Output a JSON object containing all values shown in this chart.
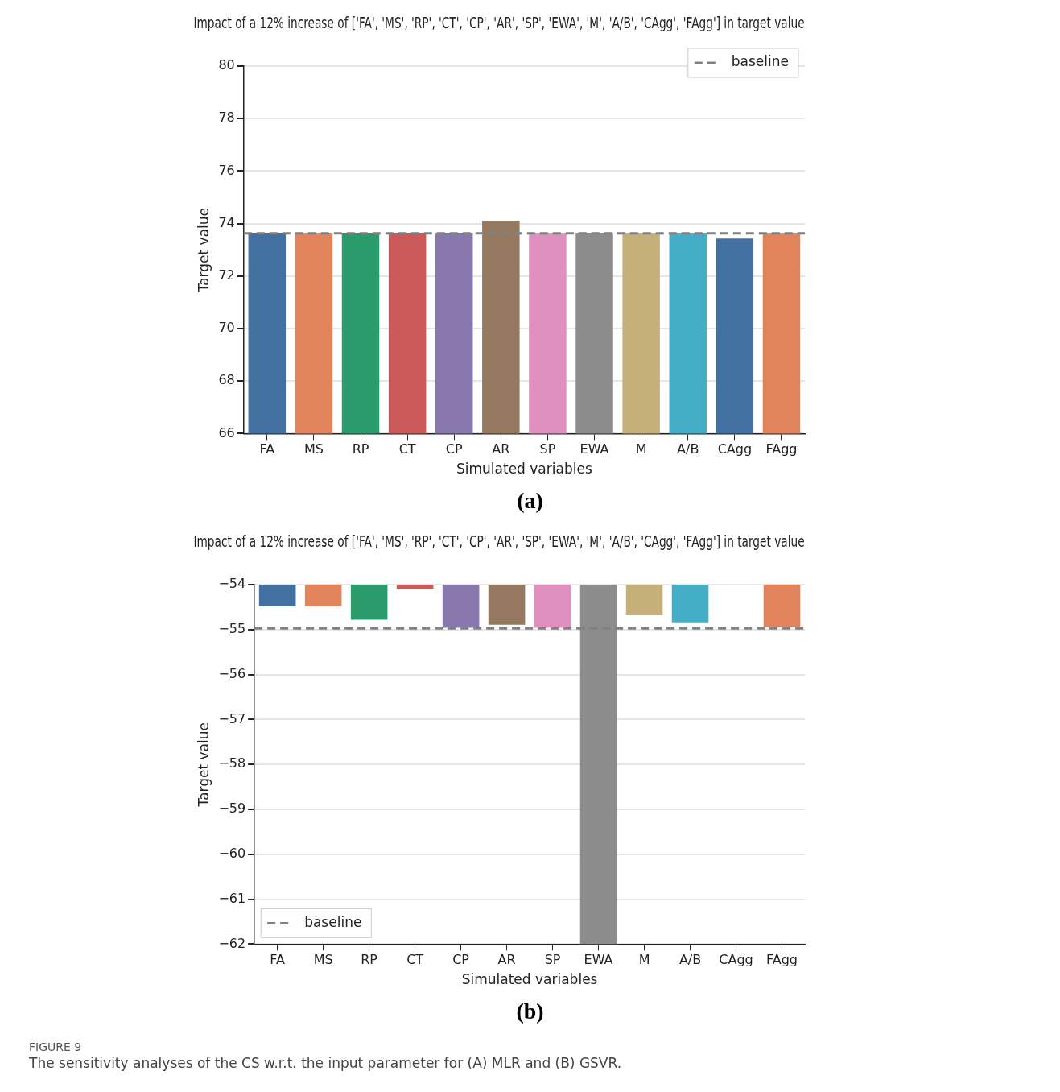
{
  "chart_data": [
    {
      "type": "bar",
      "title": "Impact of a 12% increase of ['FA', 'MS', 'RP', 'CT', 'CP', 'AR', 'SP', 'EWA', 'M', 'A/B', 'CAgg', 'FAgg'] in target value",
      "xlabel": "Simulated variables",
      "ylabel": "Target value",
      "categories": [
        "FA",
        "MS",
        "RP",
        "CT",
        "CP",
        "AR",
        "SP",
        "EWA",
        "M",
        "A/B",
        "CAgg",
        "FAgg"
      ],
      "values": [
        73.65,
        73.65,
        73.65,
        73.65,
        73.65,
        74.1,
        73.65,
        73.65,
        73.65,
        73.65,
        73.43,
        73.65
      ],
      "colors": [
        "#4270a1",
        "#e1845c",
        "#2a9b6b",
        "#cd5a5b",
        "#8978ad",
        "#947860",
        "#df90bf",
        "#8c8c8c",
        "#c5b07a",
        "#43aec5",
        "#4270a1",
        "#e1845c"
      ],
      "ylim": [
        66,
        80
      ],
      "yticks": [
        66,
        68,
        70,
        72,
        74,
        76,
        78,
        80
      ],
      "grid": "y",
      "legend": "top right",
      "ref_lines": [
        {
          "axis": "y",
          "value": 73.63,
          "label": "baseline",
          "color": "#808080",
          "line_style": "dashed"
        }
      ],
      "annotations": [
        "(a)"
      ]
    },
    {
      "type": "bar",
      "title": "Impact of a 12% increase of ['FA', 'MS', 'RP', 'CT', 'CP', 'AR', 'SP', 'EWA', 'M', 'A/B', 'CAgg', 'FAgg'] in target value",
      "xlabel": "Simulated variables",
      "ylabel": "Target value",
      "categories": [
        "FA",
        "MS",
        "RP",
        "CT",
        "CP",
        "AR",
        "SP",
        "EWA",
        "M",
        "A/B",
        "CAgg",
        "FAgg"
      ],
      "values": [
        -54.48,
        -54.48,
        -54.78,
        -54.09,
        -54.96,
        -54.89,
        -54.96,
        -62,
        -54.68,
        -54.84,
        null,
        -54.94
      ],
      "colors": [
        "#4270a1",
        "#e1845c",
        "#2a9b6b",
        "#cd5a5b",
        "#8978ad",
        "#947860",
        "#df90bf",
        "#8c8c8c",
        "#c5b07a",
        "#43aec5",
        "#4270a1",
        "#e1845c"
      ],
      "ylim": [
        -62,
        -54
      ],
      "yticks": [
        {
          "value": -62,
          "label": "−62"
        },
        {
          "value": -61,
          "label": "−61"
        },
        {
          "value": -60,
          "label": "−60"
        },
        {
          "value": -59,
          "label": "−59"
        },
        {
          "value": -58,
          "label": "−58"
        },
        {
          "value": -57,
          "label": "−57"
        },
        {
          "value": -56,
          "label": "−56"
        },
        {
          "value": -55,
          "label": "−55"
        },
        {
          "value": -54,
          "label": "−54"
        }
      ],
      "grid": "y",
      "legend": "bottom left",
      "ref_lines": [
        {
          "axis": "y",
          "value": -54.97,
          "label": "baseline",
          "color": "#808080",
          "line_style": "dashed"
        }
      ],
      "annotations": [
        "(b)",
        "FIGURE 9",
        "The sensitivity analyses of the CS w.r.t. the input parameter for (A) MLR and (B) GSVR."
      ]
    }
  ]
}
